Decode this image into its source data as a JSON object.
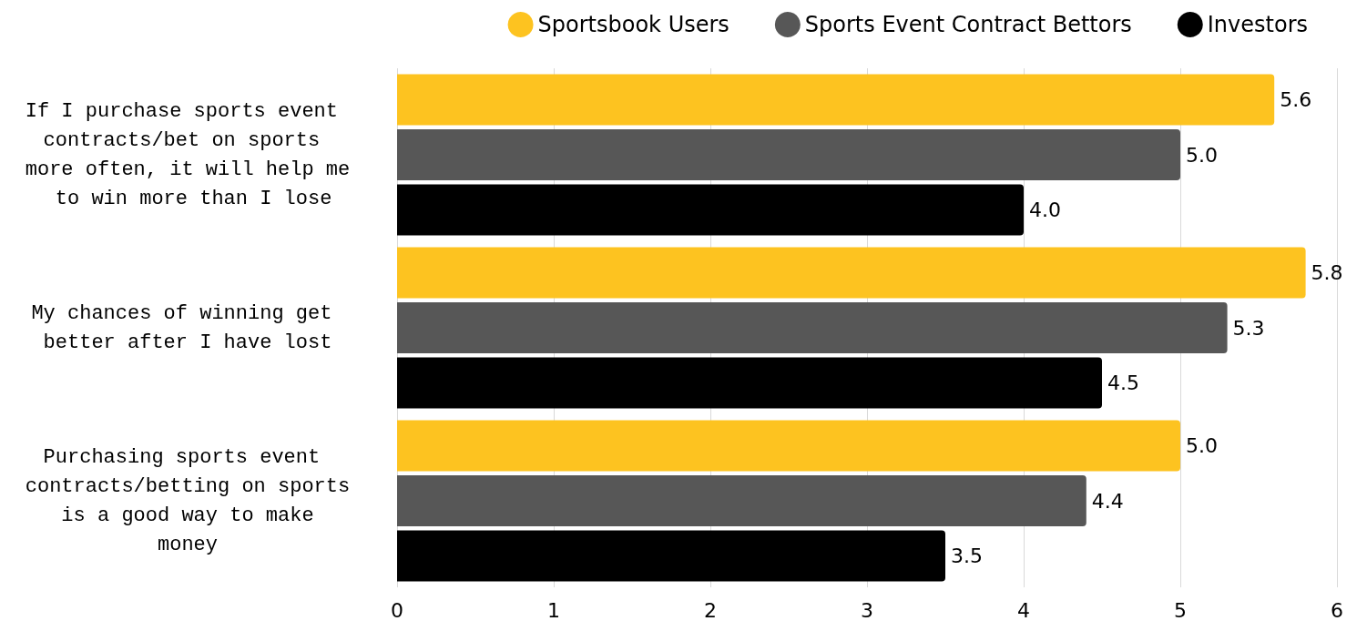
{
  "chart_data": {
    "type": "bar",
    "orientation": "horizontal",
    "categories": [
      "If I purchase sports event contracts/bet on sports more often, it will help me to win more than I lose",
      "My chances of winning get better after I have lost",
      "Purchasing sports event contracts/betting on sports is a good way to make money"
    ],
    "series": [
      {
        "name": "Sportsbook Users",
        "color": "#fdc320",
        "values": [
          5.6,
          5.8,
          5.0
        ],
        "value_labels": [
          "5.6",
          "5.8",
          "5.0"
        ]
      },
      {
        "name": "Sports Event Contract Bettors",
        "color": "#575757",
        "values": [
          5.0,
          5.3,
          4.4
        ],
        "value_labels": [
          "5.0",
          "5.3",
          "4.4"
        ]
      },
      {
        "name": "Investors",
        "color": "#000000",
        "values": [
          4.0,
          4.5,
          3.5
        ],
        "value_labels": [
          "4.0",
          "4.5",
          "3.5"
        ]
      }
    ],
    "xlim": [
      0,
      6
    ],
    "xticks": [
      0,
      1,
      2,
      3,
      4,
      5,
      6
    ],
    "grid": "x",
    "legend": "top right"
  }
}
